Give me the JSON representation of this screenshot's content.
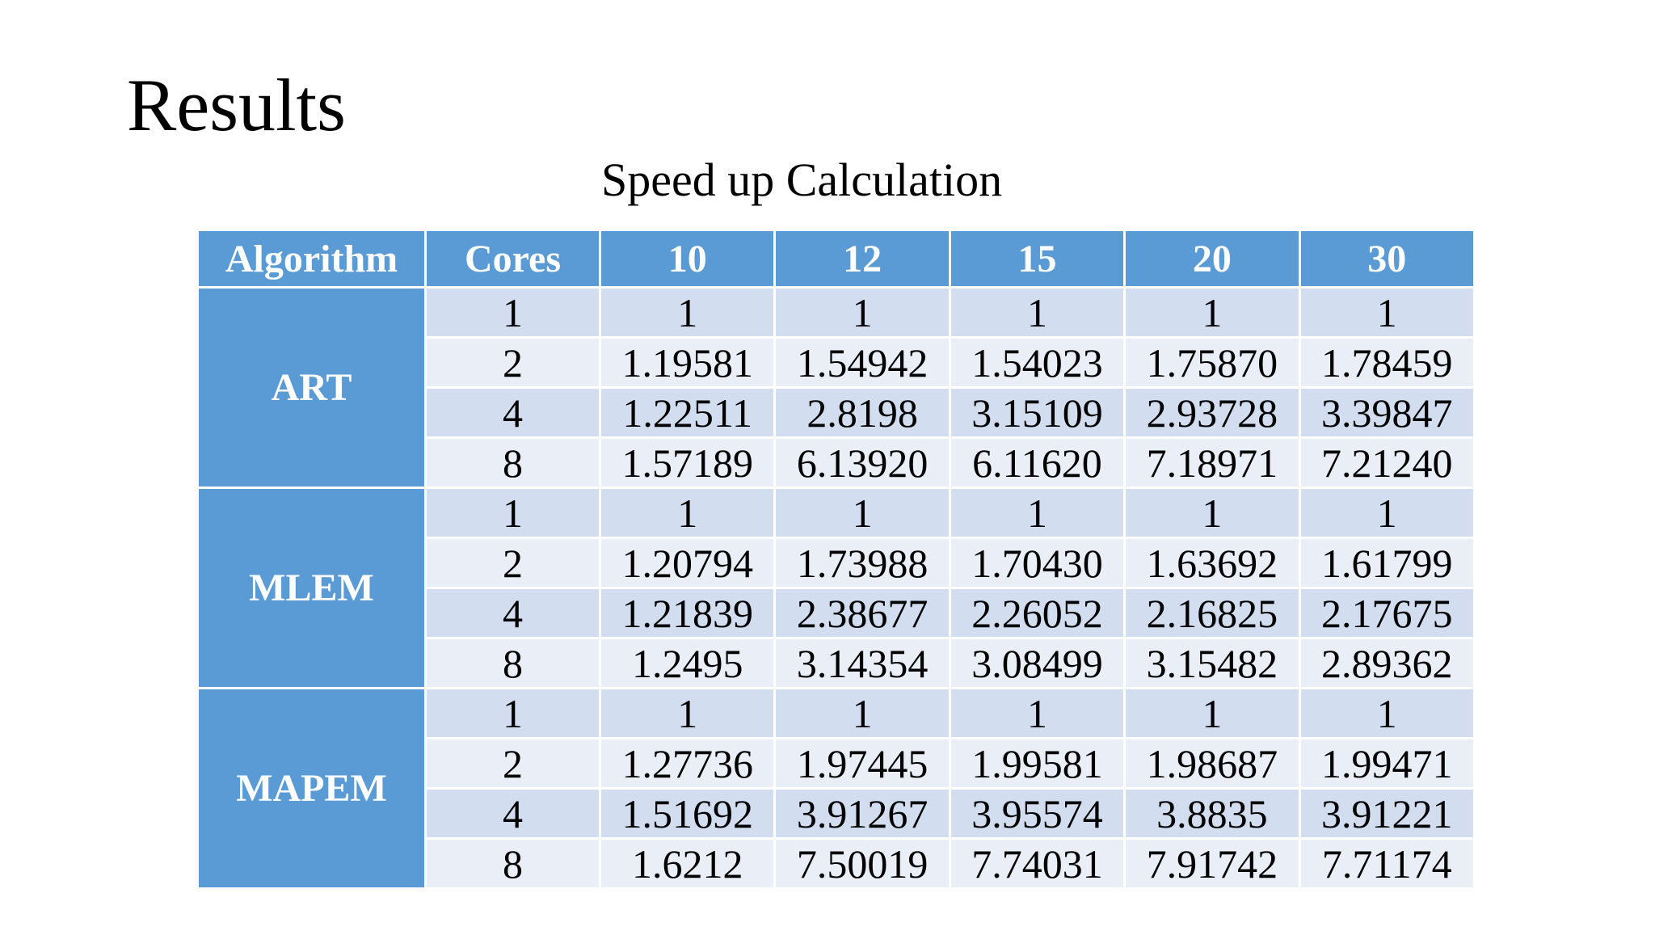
{
  "slide": {
    "title": "Results",
    "table_title": "Speed up Calculation"
  },
  "table": {
    "headers": [
      "Algorithm",
      "Cores",
      "10",
      "12",
      "15",
      "20",
      "30"
    ],
    "groups": [
      {
        "algorithm": "ART",
        "rows": [
          {
            "cores": "1",
            "values": [
              "1",
              "1",
              "1",
              "1",
              "1"
            ]
          },
          {
            "cores": "2",
            "values": [
              "1.19581",
              "1.54942",
              "1.54023",
              "1.75870",
              "1.78459"
            ]
          },
          {
            "cores": "4",
            "values": [
              "1.22511",
              "2.8198",
              "3.15109",
              "2.93728",
              "3.39847"
            ]
          },
          {
            "cores": "8",
            "values": [
              "1.57189",
              "6.13920",
              "6.11620",
              "7.18971",
              "7.21240"
            ]
          }
        ]
      },
      {
        "algorithm": "MLEM",
        "rows": [
          {
            "cores": "1",
            "values": [
              "1",
              "1",
              "1",
              "1",
              "1"
            ]
          },
          {
            "cores": "2",
            "values": [
              "1.20794",
              "1.73988",
              "1.70430",
              "1.63692",
              "1.61799"
            ]
          },
          {
            "cores": "4",
            "values": [
              "1.21839",
              "2.38677",
              "2.26052",
              "2.16825",
              "2.17675"
            ]
          },
          {
            "cores": "8",
            "values": [
              "1.2495",
              "3.14354",
              "3.08499",
              "3.15482",
              "2.89362"
            ]
          }
        ]
      },
      {
        "algorithm": "MAPEM",
        "rows": [
          {
            "cores": "1",
            "values": [
              "1",
              "1",
              "1",
              "1",
              "1"
            ]
          },
          {
            "cores": "2",
            "values": [
              "1.27736",
              "1.97445",
              "1.99581",
              "1.98687",
              "1.99471"
            ]
          },
          {
            "cores": "4",
            "values": [
              "1.51692",
              "3.91267",
              "3.95574",
              "3.8835",
              "3.91221"
            ]
          },
          {
            "cores": "8",
            "values": [
              "1.6212",
              "7.50019",
              "7.74031",
              "7.91742",
              "7.71174"
            ]
          }
        ]
      }
    ]
  },
  "colors": {
    "header_bg": "#5b9bd5",
    "row_band_dark": "#d2deef",
    "row_band_light": "#eaeff7",
    "header_text": "#ffffff"
  }
}
